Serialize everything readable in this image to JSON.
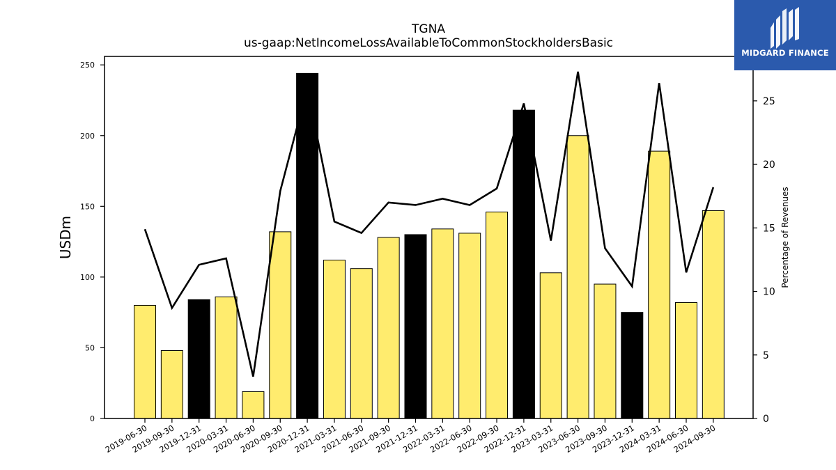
{
  "chart_data": {
    "type": "bar",
    "title": "TGNA",
    "subtitle": "us-gaap:NetIncomeLossAvailableToCommonStockholdersBasic",
    "ylabel": "USDm",
    "y2label": "Percentage of Revenues",
    "ylim": [
      0,
      256
    ],
    "y2lim": [
      0,
      28.5
    ],
    "yticks": [
      "0",
      "50",
      "100",
      "150",
      "200",
      "250"
    ],
    "y2ticks": [
      "0",
      "5",
      "10",
      "15",
      "20",
      "25"
    ],
    "categories": [
      "2019-06-30",
      "2019-09-30",
      "2019-12-31",
      "2020-03-31",
      "2020-06-30",
      "2020-09-30",
      "2020-12-31",
      "2021-03-31",
      "2021-06-30",
      "2021-09-30",
      "2021-12-31",
      "2022-03-31",
      "2022-06-30",
      "2022-09-30",
      "2022-12-31",
      "2023-03-31",
      "2023-06-30",
      "2023-09-30",
      "2023-12-31",
      "2024-03-31",
      "2024-06-30",
      "2024-09-30"
    ],
    "series": [
      {
        "type": "bar",
        "values": [
          80,
          48,
          84,
          86,
          19,
          132,
          244,
          112,
          106,
          128,
          130,
          134,
          131,
          146,
          218,
          103,
          200,
          95,
          75,
          189,
          82,
          147
        ],
        "quarter_end_highlight": [
          false,
          false,
          true,
          false,
          false,
          false,
          true,
          false,
          false,
          false,
          true,
          false,
          false,
          false,
          true,
          false,
          false,
          false,
          true,
          false,
          false,
          false
        ]
      },
      {
        "type": "line",
        "axis": "right",
        "values": [
          14.9,
          8.7,
          12.1,
          12.6,
          3.3,
          17.9,
          26.0,
          15.5,
          14.6,
          17.0,
          16.8,
          17.3,
          16.8,
          18.1,
          24.8,
          14.0,
          27.3,
          13.4,
          10.4,
          26.4,
          11.5,
          18.2
        ]
      }
    ],
    "colors": {
      "bar": "#ffec6e",
      "bar_highlight": "#000000",
      "line": "#000000"
    },
    "grid": false,
    "legend": "none"
  },
  "logo": {
    "name": "MIDGARD FINANCE",
    "colors": {
      "background": "#2b5aad",
      "mark": "#ffffff"
    }
  }
}
